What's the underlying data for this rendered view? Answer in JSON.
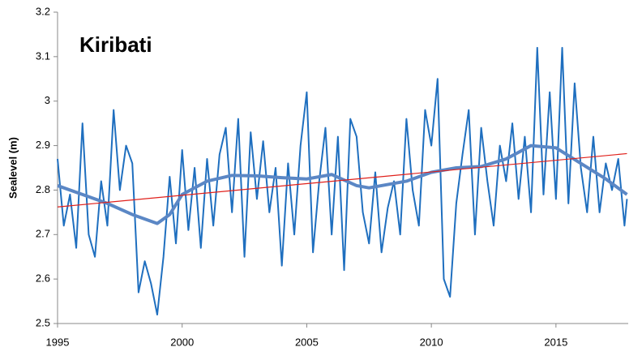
{
  "chart_data": {
    "type": "line",
    "title": "Kiribati",
    "y_label": "Sealevel (m)",
    "xlim": [
      1995,
      2017.9
    ],
    "xticks": [
      1995,
      2000,
      2005,
      2010,
      2015
    ],
    "ylim": [
      2.5,
      3.2
    ],
    "yticks": [
      2.5,
      2.6,
      2.7,
      2.8,
      2.9,
      3,
      3.1,
      3.2
    ],
    "grid": false,
    "series": [
      {
        "color": "#1f6fbf",
        "width": 2,
        "x": [
          1995,
          1995.25,
          1995.5,
          1995.75,
          1996,
          1996.25,
          1996.5,
          1996.75,
          1997,
          1997.25,
          1997.5,
          1997.75,
          1998,
          1998.25,
          1998.5,
          1998.75,
          1999,
          1999.25,
          1999.5,
          1999.75,
          2000,
          2000.25,
          2000.5,
          2000.75,
          2001,
          2001.25,
          2001.5,
          2001.75,
          2002,
          2002.25,
          2002.5,
          2002.75,
          2003,
          2003.25,
          2003.5,
          2003.75,
          2004,
          2004.25,
          2004.5,
          2004.75,
          2005,
          2005.25,
          2005.5,
          2005.75,
          2006,
          2006.25,
          2006.5,
          2006.75,
          2007,
          2007.25,
          2007.5,
          2007.75,
          2008,
          2008.25,
          2008.5,
          2008.75,
          2009,
          2009.25,
          2009.5,
          2009.75,
          2010,
          2010.25,
          2010.5,
          2010.75,
          2011,
          2011.25,
          2011.5,
          2011.75,
          2012,
          2012.25,
          2012.5,
          2012.75,
          2013,
          2013.25,
          2013.5,
          2013.75,
          2014,
          2014.25,
          2014.5,
          2014.75,
          2015,
          2015.25,
          2015.5,
          2015.75,
          2016,
          2016.25,
          2016.5,
          2016.75,
          2017,
          2017.25,
          2017.5,
          2017.75,
          2017.85
        ],
        "values": [
          2.87,
          2.72,
          2.79,
          2.67,
          2.95,
          2.7,
          2.65,
          2.82,
          2.72,
          2.98,
          2.8,
          2.9,
          2.86,
          2.57,
          2.64,
          2.59,
          2.52,
          2.65,
          2.83,
          2.68,
          2.89,
          2.71,
          2.85,
          2.67,
          2.87,
          2.72,
          2.88,
          2.94,
          2.75,
          2.96,
          2.65,
          2.93,
          2.78,
          2.91,
          2.75,
          2.85,
          2.63,
          2.86,
          2.7,
          2.9,
          3.02,
          2.66,
          2.82,
          2.94,
          2.7,
          2.92,
          2.62,
          2.96,
          2.92,
          2.75,
          2.68,
          2.84,
          2.66,
          2.76,
          2.82,
          2.7,
          2.96,
          2.8,
          2.72,
          2.98,
          2.9,
          3.05,
          2.6,
          2.56,
          2.77,
          2.88,
          2.98,
          2.7,
          2.94,
          2.82,
          2.72,
          2.9,
          2.82,
          2.95,
          2.78,
          2.92,
          2.75,
          3.12,
          2.79,
          3.02,
          2.78,
          3.12,
          2.77,
          3.04,
          2.85,
          2.75,
          2.92,
          2.75,
          2.86,
          2.8,
          2.87,
          2.72,
          2.78
        ]
      },
      {
        "color": "#5b87c5",
        "width": 4,
        "x": [
          1995,
          1996,
          1997,
          1998,
          1999,
          1999.5,
          2000,
          2001,
          2002,
          2003,
          2004,
          2005,
          2006,
          2007,
          2007.5,
          2008,
          2009,
          2010,
          2011,
          2012,
          2013,
          2014,
          2015,
          2016,
          2017,
          2017.85
        ],
        "values": [
          2.81,
          2.79,
          2.77,
          2.745,
          2.725,
          2.745,
          2.79,
          2.82,
          2.833,
          2.832,
          2.828,
          2.825,
          2.835,
          2.81,
          2.805,
          2.81,
          2.82,
          2.84,
          2.85,
          2.853,
          2.87,
          2.9,
          2.895,
          2.86,
          2.825,
          2.79
        ]
      },
      {
        "color": "#e0201b",
        "width": 1.2,
        "x": [
          1995,
          2017.85
        ],
        "values": [
          2.762,
          2.882
        ]
      }
    ]
  }
}
